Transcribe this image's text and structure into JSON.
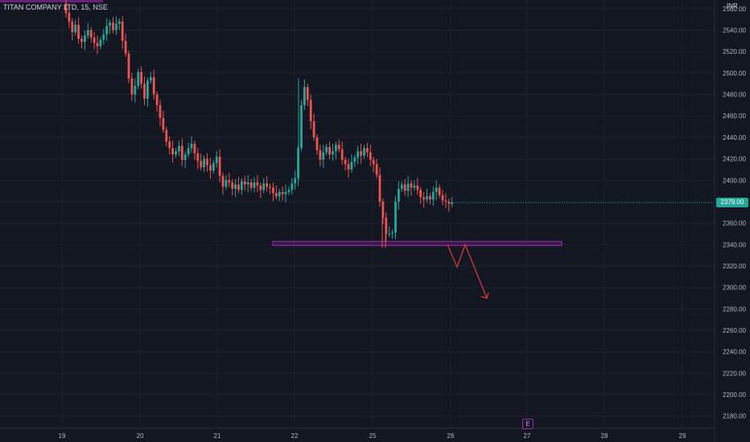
{
  "header": {
    "title": "TITAN COMPANY LTD, 15, NSE",
    "currency": "INR"
  },
  "colors": {
    "background": "#131722",
    "up": "#26a69a",
    "down": "#ef5350",
    "zone": "#9c27b0",
    "arrow": "#e53935",
    "grid": "#1e2230",
    "text": "#b2b5be"
  },
  "last_price": "2379.00",
  "earnings_marker": "E",
  "chart_data": {
    "type": "candlestick",
    "title": "TITAN COMPANY LTD, 15, NSE",
    "ylim": [
      2170,
      2570
    ],
    "y_ticks": [
      2180,
      2200,
      2220,
      2240,
      2260,
      2280,
      2300,
      2320,
      2340,
      2360,
      2380,
      2400,
      2420,
      2440,
      2460,
      2480,
      2500,
      2520,
      2540,
      2560
    ],
    "x_ticks": [
      "19",
      "20",
      "21",
      "22",
      "25",
      "26",
      "27",
      "28",
      "29"
    ],
    "support_zone": [
      2339,
      2343
    ],
    "projection": [
      2340,
      2319,
      2340,
      2290
    ],
    "closes": [
      2565,
      2556,
      2548,
      2538,
      2545,
      2532,
      2529,
      2535,
      2540,
      2533,
      2528,
      2525,
      2531,
      2536,
      2544,
      2547,
      2540,
      2546,
      2548,
      2530,
      2518,
      2495,
      2480,
      2488,
      2501,
      2490,
      2476,
      2493,
      2496,
      2480,
      2470,
      2458,
      2447,
      2436,
      2430,
      2424,
      2427,
      2432,
      2419,
      2424,
      2430,
      2434,
      2425,
      2418,
      2412,
      2420,
      2414,
      2409,
      2416,
      2422,
      2404,
      2394,
      2400,
      2398,
      2392,
      2396,
      2391,
      2399,
      2396,
      2398,
      2393,
      2398,
      2395,
      2391,
      2397,
      2394,
      2393,
      2388,
      2385,
      2389,
      2387,
      2389,
      2391,
      2397,
      2402,
      2430,
      2470,
      2487,
      2475,
      2455,
      2440,
      2428,
      2419,
      2426,
      2431,
      2424,
      2427,
      2433,
      2429,
      2419,
      2415,
      2410,
      2417,
      2421,
      2427,
      2423,
      2430,
      2426,
      2419,
      2415,
      2405,
      2380,
      2365,
      2350,
      2350,
      2351,
      2380,
      2392,
      2396,
      2390,
      2397,
      2393,
      2395,
      2391,
      2384,
      2382,
      2385,
      2382,
      2389,
      2393,
      2386,
      2381,
      2380,
      2378,
      2379
    ]
  }
}
